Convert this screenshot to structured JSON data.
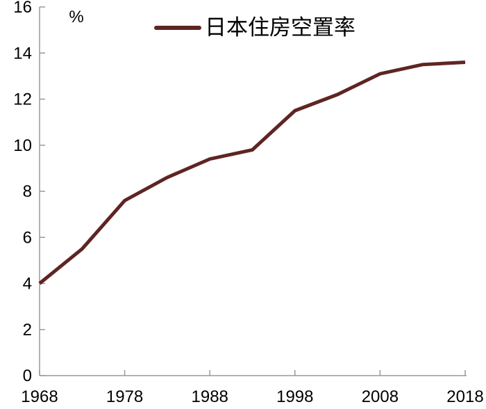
{
  "chart_data": {
    "type": "line",
    "title": "",
    "unit_label": "%",
    "legend": [
      {
        "name": "日本住房空置率",
        "color": "#5E2523"
      }
    ],
    "x": [
      1968,
      1973,
      1978,
      1983,
      1988,
      1993,
      1998,
      2003,
      2008,
      2013,
      2018
    ],
    "series": [
      {
        "name": "日本住房空置率",
        "values": [
          4.0,
          5.5,
          7.6,
          8.6,
          9.4,
          9.8,
          11.5,
          12.2,
          13.1,
          13.5,
          13.6
        ]
      }
    ],
    "x_ticks": [
      1968,
      1978,
      1988,
      1998,
      2008,
      2018
    ],
    "y_ticks": [
      0,
      2,
      4,
      6,
      8,
      10,
      12,
      14,
      16
    ],
    "xlim": [
      1968,
      2018
    ],
    "ylim": [
      0,
      16
    ],
    "grid": false,
    "legend_position": "top-center",
    "colors": {
      "line": "#5E2523",
      "axis": "#999999",
      "text": "#000000",
      "background": "#ffffff"
    },
    "line_width": 5
  }
}
